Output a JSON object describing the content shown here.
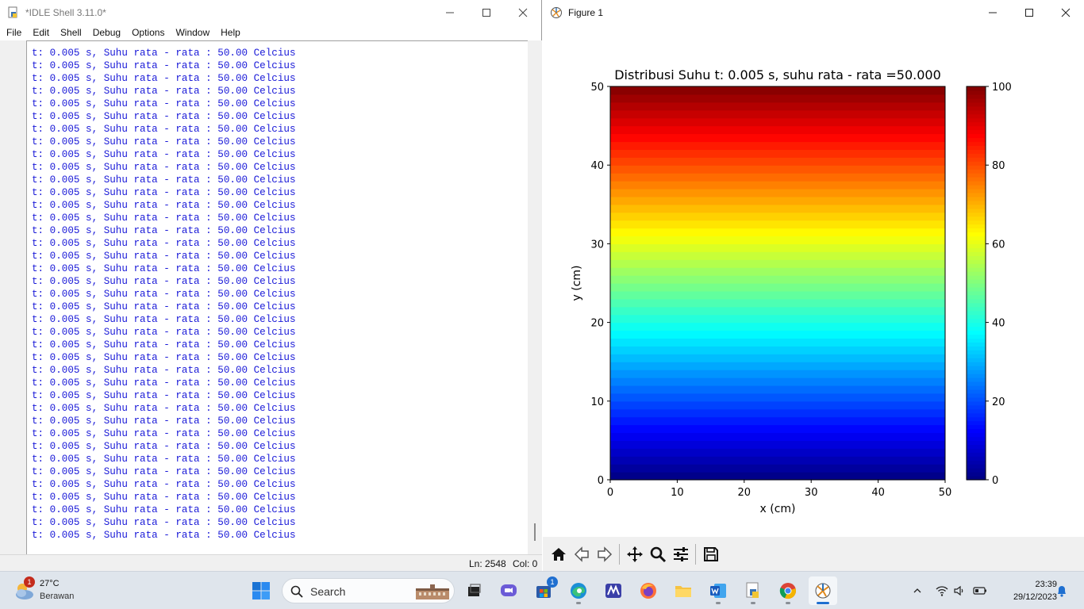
{
  "idle": {
    "title": "*IDLE Shell 3.11.0*",
    "menu": [
      "File",
      "Edit",
      "Shell",
      "Debug",
      "Options",
      "Window",
      "Help"
    ],
    "output_line": "t: 0.005 s, Suhu rata - rata : 50.00 Celcius",
    "output_line_count": 39,
    "status": {
      "line": "Ln: 2548",
      "col": "Col: 0"
    }
  },
  "figure": {
    "title": "Figure 1",
    "toolbar": [
      "home-icon",
      "back-icon",
      "forward-icon",
      "pan-icon",
      "zoom-icon",
      "configure-subplots-icon",
      "save-icon"
    ]
  },
  "chart_data": {
    "type": "heatmap",
    "title": "Distribusi Suhu t: 0.005 s, suhu rata - rata =50.000",
    "xlabel": "x (cm)",
    "ylabel": "y (cm)",
    "xlim": [
      0,
      50
    ],
    "ylim": [
      0,
      50
    ],
    "xticks": [
      0,
      10,
      20,
      30,
      40,
      50
    ],
    "yticks": [
      0,
      10,
      20,
      30,
      40,
      50
    ],
    "colormap": "jet",
    "clim": [
      0,
      100
    ],
    "colorbar_ticks": [
      0,
      20,
      40,
      60,
      80,
      100
    ],
    "field": "linear gradient in y: temperature = 2*y, uniform in x",
    "bands": 50
  },
  "taskbar": {
    "weather": {
      "temp": "27°C",
      "condition": "Berawan",
      "badge": "1"
    },
    "search_placeholder": "Search",
    "store_badge": "1",
    "time": "23:39",
    "date": "29/12/2023"
  }
}
